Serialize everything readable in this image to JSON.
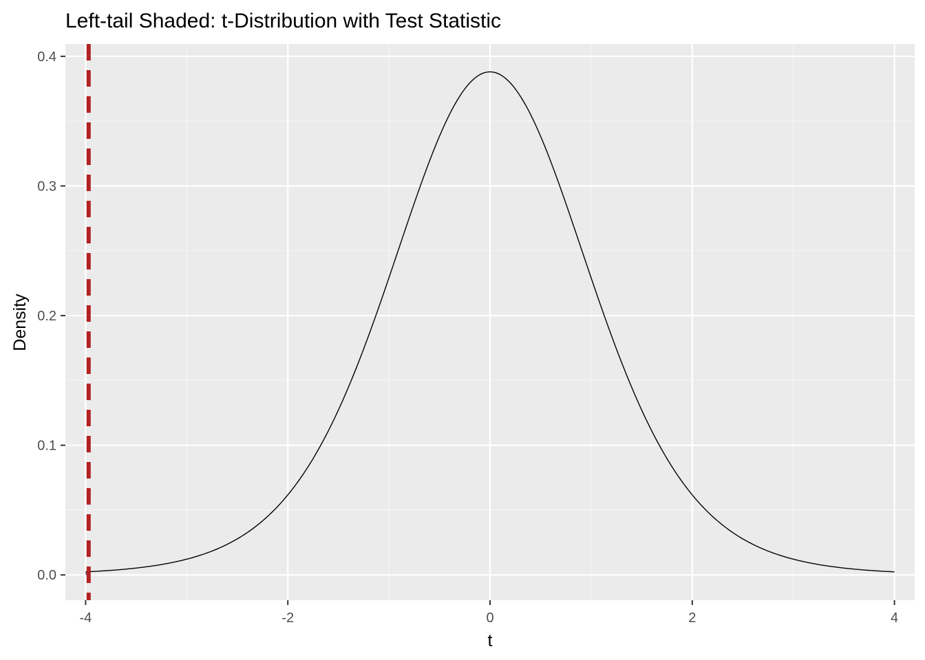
{
  "chart_data": {
    "type": "line",
    "title": "Left-tail Shaded: t-Distribution with Test Statistic",
    "xlabel": "t",
    "ylabel": "Density",
    "xlim": [
      -4.2,
      4.2
    ],
    "ylim": [
      -0.0195,
      0.4095
    ],
    "x_major_ticks": [
      -4,
      -2,
      0,
      2,
      4
    ],
    "x_tick_labels": [
      "-4",
      "-2",
      "0",
      "2",
      "4"
    ],
    "x_minor_ticks": [
      -3,
      -1,
      1,
      3
    ],
    "y_major_ticks": [
      0.0,
      0.1,
      0.2,
      0.3,
      0.4
    ],
    "y_tick_labels": [
      "0.0",
      "0.1",
      "0.2",
      "0.3",
      "0.4"
    ],
    "y_minor_ticks": [
      0.05,
      0.15,
      0.25,
      0.35
    ],
    "grid": true,
    "legend": "none",
    "series": [
      {
        "distribution": "t",
        "df": 9,
        "x_range": [
          -4,
          4
        ],
        "color": "#000000",
        "peak": [
          0,
          0.39
        ],
        "points": [
          [
            -4,
            0.0015
          ],
          [
            -3,
            0.0097
          ],
          [
            -2,
            0.0611
          ],
          [
            -1,
            0.2304
          ],
          [
            0,
            0.388
          ],
          [
            1,
            0.2304
          ],
          [
            2,
            0.0611
          ],
          [
            3,
            0.0097
          ],
          [
            4,
            0.0015
          ]
        ]
      }
    ],
    "shaded_region": {
      "x_from": -4,
      "x_to": -3.97,
      "color": "#1a237e"
    },
    "vline": {
      "x": -3.97,
      "color": "#b22222",
      "style": "dashed"
    }
  },
  "colors": {
    "panel_bg": "#ebebeb",
    "grid_major": "#ffffff",
    "grid_minor": "#f5f5f5",
    "text": "#000000",
    "tick_text": "#4d4d4d",
    "axis_ticks": "#333333"
  }
}
